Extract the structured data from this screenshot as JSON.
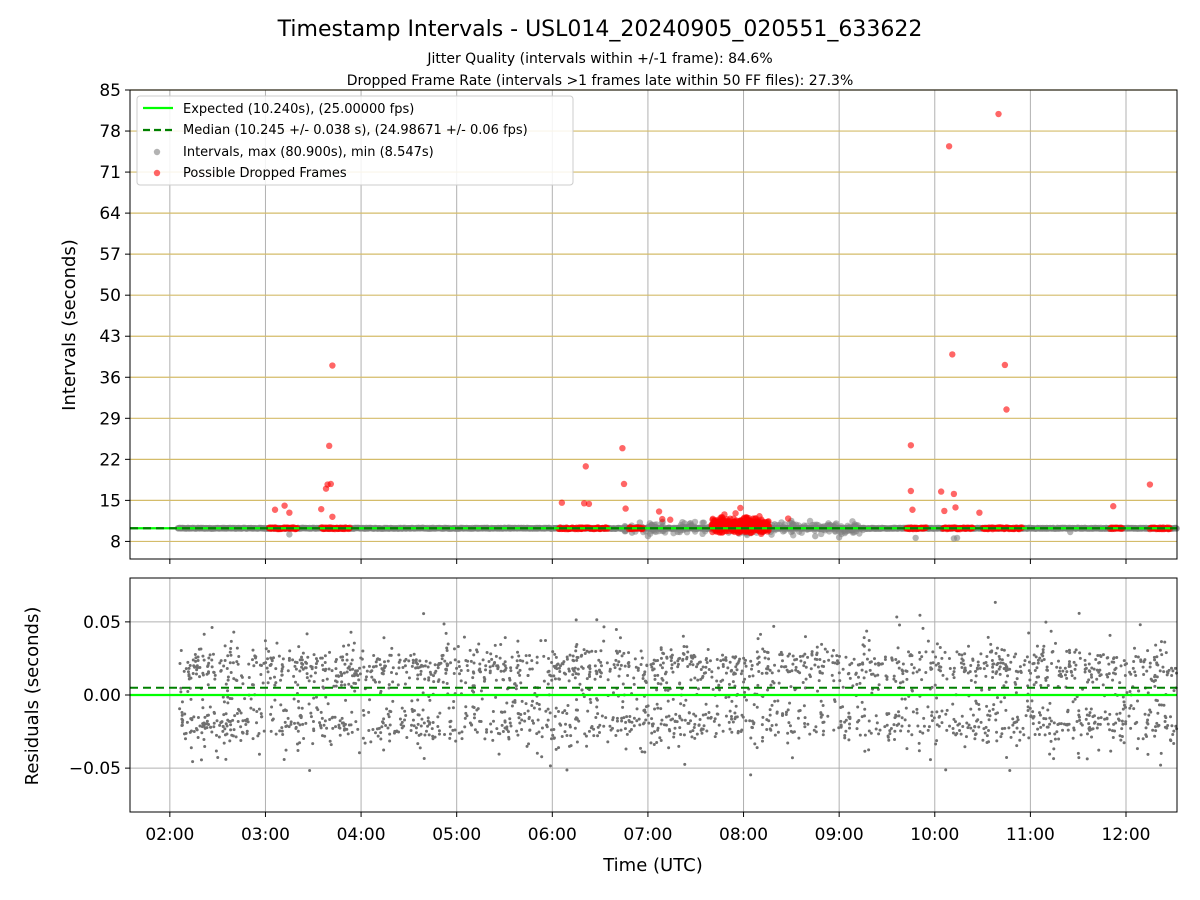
{
  "colors": {
    "expected": "#00ff00",
    "median": "#008000",
    "intervals": "#808080",
    "dropped": "#ff0000",
    "grid_major": "#b0b0b0",
    "grid_y": "#d4bc6a",
    "residuals": "#707070"
  },
  "chart_data": [
    {
      "type": "scatter",
      "title": "Timestamp Intervals - USL014_20240905_020551_633622",
      "subtitle_1": "Jitter Quality (intervals within +/-1 frame): 84.6%",
      "subtitle_2": "Dropped Frame Rate (intervals >1 frames late within 50 FF files): 27.3%",
      "xlabel": "",
      "ylabel": "Intervals (seconds)",
      "x_range": [
        "01:35",
        "12:32"
      ],
      "ylim": [
        5,
        85
      ],
      "y_ticks": [
        8,
        15,
        22,
        29,
        36,
        43,
        50,
        57,
        64,
        71,
        78,
        85
      ],
      "x_ticks": [
        "02:00",
        "03:00",
        "04:00",
        "05:00",
        "06:00",
        "07:00",
        "08:00",
        "09:00",
        "10:00",
        "11:00",
        "12:00"
      ],
      "grid": true,
      "legend_position": "upper-left",
      "legend": [
        "Expected (10.240s), (25.00000 fps)",
        "Median (10.245 +/- 0.038 s), (24.98671 +/- 0.06 fps)",
        "Intervals, max (80.900s), min (8.547s)",
        "Possible Dropped Frames"
      ],
      "expected_interval": 10.24,
      "median_interval": 10.245,
      "interval_band": {
        "from": "02:05",
        "to": "12:32",
        "value": 10.24
      },
      "dropped_frame_clusters": [
        {
          "from": "03:02",
          "to": "03:20",
          "value": 10.24
        },
        {
          "from": "03:35",
          "to": "03:53",
          "value": 10.24
        },
        {
          "from": "06:04",
          "to": "06:20",
          "value": 10.24
        },
        {
          "from": "06:18",
          "to": "06:35",
          "value": 10.24
        },
        {
          "from": "06:48",
          "to": "06:57",
          "value": 10.24
        },
        {
          "from": "07:40",
          "to": "08:16",
          "value": 10.7
        },
        {
          "from": "09:42",
          "to": "09:55",
          "value": 10.24
        },
        {
          "from": "10:05",
          "to": "10:24",
          "value": 10.24
        },
        {
          "from": "10:30",
          "to": "10:55",
          "value": 10.24
        },
        {
          "from": "11:50",
          "to": "11:58",
          "value": 10.24
        },
        {
          "from": "12:15",
          "to": "12:28",
          "value": 10.24
        }
      ],
      "dropped_frame_outliers": [
        [
          "03:06",
          13.4
        ],
        [
          "03:12",
          14.1
        ],
        [
          "03:15",
          12.9
        ],
        [
          "03:35",
          13.5
        ],
        [
          "03:38",
          17.0
        ],
        [
          "03:39",
          17.7
        ],
        [
          "03:40",
          24.3
        ],
        [
          "03:41",
          17.8
        ],
        [
          "03:42",
          12.2
        ],
        [
          "03:42",
          38.0
        ],
        [
          "06:06",
          14.6
        ],
        [
          "06:20",
          14.5
        ],
        [
          "06:21",
          20.8
        ],
        [
          "06:23",
          14.4
        ],
        [
          "06:44",
          23.9
        ],
        [
          "06:45",
          17.8
        ],
        [
          "06:46",
          13.6
        ],
        [
          "07:07",
          13.1
        ],
        [
          "07:09",
          11.8
        ],
        [
          "07:14",
          11.7
        ],
        [
          "07:48",
          12.6
        ],
        [
          "07:55",
          12.8
        ],
        [
          "07:58",
          13.7
        ],
        [
          "08:02",
          12.1
        ],
        [
          "08:10",
          12.3
        ],
        [
          "08:28",
          11.9
        ],
        [
          "09:45",
          24.4
        ],
        [
          "09:45",
          16.6
        ],
        [
          "09:46",
          13.4
        ],
        [
          "10:04",
          16.5
        ],
        [
          "10:06",
          13.2
        ],
        [
          "10:09",
          75.4
        ],
        [
          "10:11",
          39.9
        ],
        [
          "10:12",
          16.1
        ],
        [
          "10:13",
          13.8
        ],
        [
          "10:28",
          12.9
        ],
        [
          "10:40",
          80.9
        ],
        [
          "10:44",
          38.1
        ],
        [
          "10:45",
          30.5
        ],
        [
          "11:52",
          14.0
        ],
        [
          "12:15",
          17.7
        ]
      ],
      "interval_outliers": [
        [
          "03:15",
          9.2
        ],
        [
          "06:50",
          9.5
        ],
        [
          "07:00",
          8.9
        ],
        [
          "07:20",
          9.6
        ],
        [
          "07:35",
          11.2
        ],
        [
          "08:30",
          11.5
        ],
        [
          "08:45",
          8.9
        ],
        [
          "09:00",
          8.7
        ],
        [
          "09:48",
          8.6
        ],
        [
          "10:12",
          8.5
        ],
        [
          "10:14",
          8.6
        ],
        [
          "11:25",
          9.6
        ]
      ]
    },
    {
      "type": "scatter",
      "xlabel": "Time (UTC)",
      "ylabel": "Residuals (seconds)",
      "x_range": [
        "01:35",
        "12:32"
      ],
      "ylim": [
        -0.08,
        0.08
      ],
      "y_ticks": [
        -0.05,
        0.0,
        0.05
      ],
      "y_tick_labels": [
        "−0.05",
        "0.00",
        "0.05"
      ],
      "x_ticks": [
        "02:00",
        "03:00",
        "04:00",
        "05:00",
        "06:00",
        "07:00",
        "08:00",
        "09:00",
        "10:00",
        "11:00",
        "12:00"
      ],
      "grid": true,
      "zero_line": 0.0,
      "median_offset": 0.005,
      "residual_points": {
        "from": "02:06",
        "to": "12:32",
        "count": 2400,
        "spread_sd": 0.022,
        "clusters": [
          0.02,
          -0.02
        ]
      }
    }
  ]
}
